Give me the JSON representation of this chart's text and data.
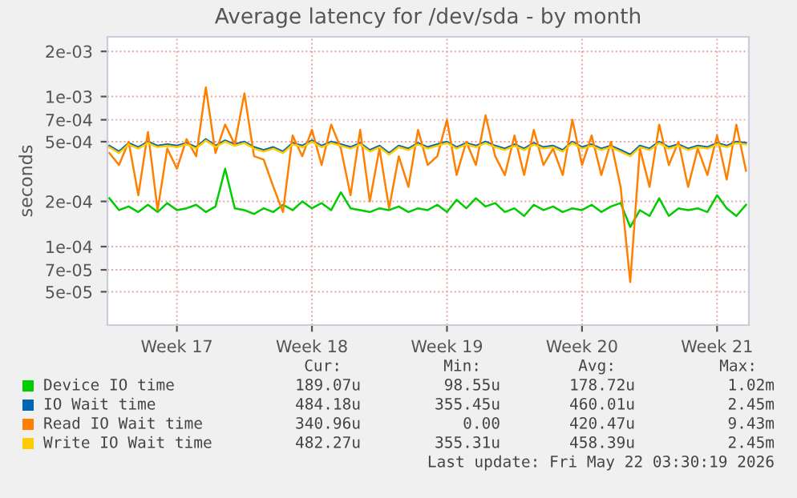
{
  "chart_data": {
    "type": "line",
    "title": "Average latency for /dev/sda - by month",
    "ylabel": "seconds",
    "log": "y",
    "grid": true,
    "legend": "bottom",
    "ylim": [
      3e-05,
      0.0025
    ],
    "yticks": [
      {
        "value": 5e-05,
        "label": "5e-05"
      },
      {
        "value": 7e-05,
        "label": "7e-05"
      },
      {
        "value": 0.0001,
        "label": "1e-04"
      },
      {
        "value": 0.0002,
        "label": "2e-04"
      },
      {
        "value": 0.0005,
        "label": "5e-04"
      },
      {
        "value": 0.0007,
        "label": "7e-04"
      },
      {
        "value": 0.001,
        "label": "1e-03"
      },
      {
        "value": 0.002,
        "label": "2e-03"
      }
    ],
    "categories": [
      null,
      null,
      null,
      null,
      null,
      null,
      null,
      "Week 17",
      null,
      null,
      null,
      null,
      null,
      null,
      null,
      null,
      null,
      null,
      null,
      null,
      null,
      "Week 18",
      null,
      null,
      null,
      null,
      null,
      null,
      null,
      null,
      null,
      null,
      null,
      null,
      null,
      "Week 19",
      null,
      null,
      null,
      null,
      null,
      null,
      null,
      null,
      null,
      null,
      null,
      null,
      null,
      "Week 20",
      null,
      null,
      null,
      null,
      null,
      null,
      null,
      null,
      null,
      null,
      null,
      null,
      null,
      "Week 21",
      null,
      null,
      null
    ],
    "series": [
      {
        "name": "Device IO time",
        "color": "#00cc00",
        "values": [
          0.00021,
          0.000175,
          0.000185,
          0.00017,
          0.00019,
          0.00017,
          0.000195,
          0.000175,
          0.00018,
          0.00019,
          0.00017,
          0.000185,
          0.00033,
          0.00018,
          0.000175,
          0.000165,
          0.00018,
          0.00017,
          0.00019,
          0.000175,
          0.0002,
          0.00018,
          0.000195,
          0.000175,
          0.00023,
          0.00018,
          0.000175,
          0.00017,
          0.00018,
          0.000175,
          0.000185,
          0.00017,
          0.00018,
          0.000175,
          0.00019,
          0.00017,
          0.000205,
          0.00018,
          0.00021,
          0.000185,
          0.000195,
          0.00017,
          0.00018,
          0.00016,
          0.00019,
          0.000175,
          0.000185,
          0.00017,
          0.00018,
          0.000175,
          0.00019,
          0.00017,
          0.000185,
          0.000195,
          0.000135,
          0.000175,
          0.00016,
          0.00021,
          0.00016,
          0.00018,
          0.000175,
          0.00018,
          0.00017,
          0.00022,
          0.00018,
          0.00016,
          0.00019
        ]
      },
      {
        "name": "IO Wait time",
        "color": "#0066b3",
        "values": [
          0.00047,
          0.00043,
          0.00049,
          0.00046,
          0.0005,
          0.00047,
          0.00048,
          0.00047,
          0.00049,
          0.00046,
          0.00052,
          0.00047,
          0.00051,
          0.00048,
          0.0005,
          0.00046,
          0.00044,
          0.00046,
          0.00043,
          0.00049,
          0.00047,
          0.00051,
          0.00047,
          0.0005,
          0.00048,
          0.00046,
          0.00049,
          0.00044,
          0.00047,
          0.00042,
          0.00047,
          0.00045,
          0.00049,
          0.00046,
          0.00048,
          0.0005,
          0.00046,
          0.00049,
          0.00047,
          0.0005,
          0.00047,
          0.00045,
          0.00048,
          0.00045,
          0.00049,
          0.00046,
          0.00047,
          0.00044,
          0.0005,
          0.00046,
          0.00048,
          0.00045,
          0.00047,
          0.00044,
          0.00041,
          0.00047,
          0.00045,
          0.0005,
          0.00046,
          0.00048,
          0.00045,
          0.00047,
          0.00046,
          0.00049,
          0.00047,
          0.0005,
          0.00049
        ]
      },
      {
        "name": "Read IO Wait time",
        "color": "#ff8000",
        "values": [
          0.00042,
          0.00035,
          0.0005,
          0.00022,
          0.00058,
          0.000175,
          0.00045,
          0.00033,
          0.00052,
          0.0004,
          0.00115,
          0.00042,
          0.00065,
          0.00048,
          0.00105,
          0.0004,
          0.00038,
          0.00025,
          0.00017,
          0.00055,
          0.0004,
          0.0006,
          0.00035,
          0.00065,
          0.00045,
          0.00022,
          0.0006,
          0.0002,
          0.00045,
          0.00018,
          0.0004,
          0.00025,
          0.0006,
          0.00035,
          0.0004,
          0.0007,
          0.0003,
          0.0005,
          0.00035,
          0.00075,
          0.0004,
          0.0003,
          0.00055,
          0.0003,
          0.0006,
          0.00035,
          0.00045,
          0.0003,
          0.0007,
          0.00035,
          0.00055,
          0.0003,
          0.0005,
          0.00025,
          5.8e-05,
          0.00045,
          0.00025,
          0.00065,
          0.00035,
          0.0005,
          0.00025,
          0.00045,
          0.0003,
          0.00055,
          0.00028,
          0.00065,
          0.00032
        ]
      },
      {
        "name": "Write IO Wait time",
        "color": "#ffcc00",
        "values": [
          0.00046,
          0.00042,
          0.00048,
          0.00045,
          0.00049,
          0.00046,
          0.00047,
          0.00046,
          0.00048,
          0.00045,
          0.00051,
          0.00046,
          0.0005,
          0.00047,
          0.00049,
          0.00045,
          0.00043,
          0.00045,
          0.00042,
          0.00048,
          0.00046,
          0.0005,
          0.00046,
          0.00049,
          0.00047,
          0.00045,
          0.00048,
          0.00043,
          0.00046,
          0.00041,
          0.00046,
          0.00044,
          0.00048,
          0.00045,
          0.00047,
          0.00049,
          0.00045,
          0.00048,
          0.00046,
          0.00049,
          0.00046,
          0.00044,
          0.00047,
          0.00044,
          0.00048,
          0.00045,
          0.00046,
          0.00043,
          0.00049,
          0.00045,
          0.00047,
          0.00044,
          0.00046,
          0.00043,
          0.0004,
          0.00046,
          0.00044,
          0.00049,
          0.00045,
          0.00047,
          0.00044,
          0.00046,
          0.00045,
          0.00048,
          0.00046,
          0.00049,
          0.00048
        ]
      }
    ],
    "annotations": [
      "Cur:",
      "Min:",
      "Avg:",
      "Max:",
      "189.07u",
      "98.55u",
      "178.72u",
      "1.02m",
      "484.18u",
      "355.45u",
      "460.01u",
      "2.45m",
      "340.96u",
      "0.00",
      "420.47u",
      "9.43m",
      "482.27u",
      "355.31u",
      "458.39u",
      "2.45m",
      "Last update: Fri May 22 03:30:19 2026"
    ]
  }
}
